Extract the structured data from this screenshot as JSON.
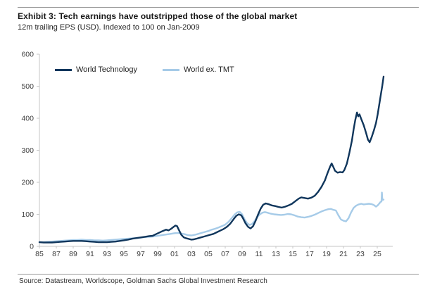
{
  "header": {
    "title": "Exhibit 3: Tech earnings have outstripped those of the global market",
    "subtitle": "12m trailing EPS (USD). Indexed to 100 on Jan-2009"
  },
  "footer": {
    "source": "Source: Datastream, Worldscope, Goldman Sachs Global Investment Research"
  },
  "chart_data": {
    "type": "line",
    "title": "Exhibit 3: Tech earnings have outstripped those of the global market",
    "subtitle": "12m trailing EPS (USD). Indexed to 100 on Jan-2009",
    "xlabel": "",
    "ylabel": "",
    "grid": false,
    "legend_position": "top-left-inside",
    "ylim": [
      0,
      600
    ],
    "yticks": [
      0,
      100,
      200,
      300,
      400,
      500,
      600
    ],
    "xtick_years": [
      1985,
      1987,
      1989,
      1991,
      1993,
      1995,
      1997,
      1999,
      2001,
      2003,
      2005,
      2007,
      2009,
      2011,
      2013,
      2015,
      2017,
      2019,
      2021,
      2023,
      2025
    ],
    "xtick_labels": [
      "85",
      "87",
      "89",
      "91",
      "93",
      "95",
      "97",
      "99",
      "01",
      "03",
      "05",
      "07",
      "09",
      "11",
      "13",
      "15",
      "17",
      "19",
      "21",
      "23",
      "25"
    ],
    "axis_color": "#c6c6c6",
    "tick_label_color": "#3d3d3d",
    "colors": {
      "world_technology": "#10365c",
      "world_ex_tmt": "#a6cbe8"
    },
    "series": [
      {
        "name": "World Technology",
        "color_key": "world_technology",
        "points": [
          [
            1985.0,
            13
          ],
          [
            1985.5,
            12
          ],
          [
            1986.0,
            12
          ],
          [
            1986.5,
            12
          ],
          [
            1987.0,
            13
          ],
          [
            1987.5,
            14
          ],
          [
            1988.0,
            15
          ],
          [
            1988.5,
            16
          ],
          [
            1989.0,
            17
          ],
          [
            1989.5,
            17
          ],
          [
            1990.0,
            17
          ],
          [
            1990.5,
            16
          ],
          [
            1991.0,
            15
          ],
          [
            1991.5,
            14
          ],
          [
            1992.0,
            13
          ],
          [
            1992.5,
            13
          ],
          [
            1993.0,
            13
          ],
          [
            1993.5,
            14
          ],
          [
            1994.0,
            15
          ],
          [
            1994.5,
            17
          ],
          [
            1995.0,
            19
          ],
          [
            1995.5,
            21
          ],
          [
            1996.0,
            24
          ],
          [
            1996.5,
            26
          ],
          [
            1997.0,
            28
          ],
          [
            1997.5,
            30
          ],
          [
            1998.0,
            32
          ],
          [
            1998.4,
            33
          ],
          [
            1998.8,
            38
          ],
          [
            1999.2,
            43
          ],
          [
            1999.6,
            48
          ],
          [
            2000.0,
            52
          ],
          [
            2000.3,
            50
          ],
          [
            2000.6,
            55
          ],
          [
            2000.9,
            61
          ],
          [
            2001.1,
            65
          ],
          [
            2001.3,
            63
          ],
          [
            2001.5,
            52
          ],
          [
            2001.8,
            36
          ],
          [
            2002.1,
            28
          ],
          [
            2002.4,
            25
          ],
          [
            2002.7,
            23
          ],
          [
            2003.0,
            21
          ],
          [
            2003.3,
            22
          ],
          [
            2003.6,
            24
          ],
          [
            2004.0,
            27
          ],
          [
            2004.4,
            30
          ],
          [
            2004.8,
            33
          ],
          [
            2005.2,
            36
          ],
          [
            2005.6,
            39
          ],
          [
            2006.0,
            44
          ],
          [
            2006.4,
            49
          ],
          [
            2006.8,
            54
          ],
          [
            2007.2,
            61
          ],
          [
            2007.6,
            71
          ],
          [
            2008.0,
            85
          ],
          [
            2008.3,
            95
          ],
          [
            2008.6,
            100
          ],
          [
            2008.9,
            97
          ],
          [
            2009.1,
            88
          ],
          [
            2009.4,
            72
          ],
          [
            2009.7,
            61
          ],
          [
            2010.0,
            56
          ],
          [
            2010.3,
            63
          ],
          [
            2010.6,
            80
          ],
          [
            2010.9,
            100
          ],
          [
            2011.2,
            118
          ],
          [
            2011.5,
            130
          ],
          [
            2011.8,
            134
          ],
          [
            2012.1,
            132
          ],
          [
            2012.5,
            128
          ],
          [
            2012.9,
            126
          ],
          [
            2013.3,
            123
          ],
          [
            2013.7,
            121
          ],
          [
            2014.1,
            124
          ],
          [
            2014.5,
            128
          ],
          [
            2014.9,
            133
          ],
          [
            2015.3,
            141
          ],
          [
            2015.7,
            149
          ],
          [
            2016.0,
            153
          ],
          [
            2016.4,
            151
          ],
          [
            2016.8,
            149
          ],
          [
            2017.2,
            152
          ],
          [
            2017.6,
            158
          ],
          [
            2018.0,
            170
          ],
          [
            2018.4,
            186
          ],
          [
            2018.8,
            206
          ],
          [
            2019.1,
            228
          ],
          [
            2019.4,
            248
          ],
          [
            2019.6,
            259
          ],
          [
            2019.8,
            248
          ],
          [
            2020.0,
            236
          ],
          [
            2020.3,
            230
          ],
          [
            2020.6,
            232
          ],
          [
            2020.9,
            231
          ],
          [
            2021.1,
            238
          ],
          [
            2021.4,
            258
          ],
          [
            2021.7,
            292
          ],
          [
            2022.0,
            330
          ],
          [
            2022.2,
            365
          ],
          [
            2022.4,
            395
          ],
          [
            2022.6,
            418
          ],
          [
            2022.75,
            406
          ],
          [
            2022.9,
            412
          ],
          [
            2023.1,
            398
          ],
          [
            2023.4,
            378
          ],
          [
            2023.7,
            352
          ],
          [
            2023.9,
            333
          ],
          [
            2024.1,
            325
          ],
          [
            2024.35,
            342
          ],
          [
            2024.6,
            362
          ],
          [
            2024.85,
            385
          ],
          [
            2025.05,
            412
          ],
          [
            2025.25,
            445
          ],
          [
            2025.45,
            478
          ],
          [
            2025.6,
            502
          ],
          [
            2025.75,
            530
          ]
        ]
      },
      {
        "name": "World ex. TMT",
        "color_key": "world_ex_tmt",
        "points": [
          [
            1985.0,
            13
          ],
          [
            1985.5,
            13
          ],
          [
            1986.0,
            14
          ],
          [
            1986.5,
            15
          ],
          [
            1987.0,
            16
          ],
          [
            1987.5,
            17
          ],
          [
            1988.0,
            18
          ],
          [
            1988.5,
            19
          ],
          [
            1989.0,
            20
          ],
          [
            1989.5,
            20
          ],
          [
            1990.0,
            21
          ],
          [
            1990.5,
            20
          ],
          [
            1991.0,
            20
          ],
          [
            1991.5,
            19
          ],
          [
            1992.0,
            19
          ],
          [
            1992.5,
            18
          ],
          [
            1993.0,
            19
          ],
          [
            1993.5,
            20
          ],
          [
            1994.0,
            21
          ],
          [
            1994.5,
            22
          ],
          [
            1995.0,
            23
          ],
          [
            1995.5,
            24
          ],
          [
            1996.0,
            25
          ],
          [
            1996.5,
            26
          ],
          [
            1997.0,
            27
          ],
          [
            1997.5,
            29
          ],
          [
            1998.0,
            30
          ],
          [
            1998.5,
            31
          ],
          [
            1999.0,
            33
          ],
          [
            1999.5,
            35
          ],
          [
            2000.0,
            37
          ],
          [
            2000.5,
            39
          ],
          [
            2001.0,
            41
          ],
          [
            2001.4,
            42
          ],
          [
            2001.8,
            40
          ],
          [
            2002.2,
            38
          ],
          [
            2002.6,
            35
          ],
          [
            2003.0,
            34
          ],
          [
            2003.4,
            36
          ],
          [
            2003.8,
            39
          ],
          [
            2004.2,
            42
          ],
          [
            2004.6,
            45
          ],
          [
            2005.0,
            48
          ],
          [
            2005.4,
            52
          ],
          [
            2005.8,
            55
          ],
          [
            2006.2,
            59
          ],
          [
            2006.6,
            63
          ],
          [
            2007.0,
            68
          ],
          [
            2007.4,
            77
          ],
          [
            2007.8,
            89
          ],
          [
            2008.1,
            99
          ],
          [
            2008.4,
            106
          ],
          [
            2008.7,
            108
          ],
          [
            2009.0,
            100
          ],
          [
            2009.3,
            84
          ],
          [
            2009.6,
            72
          ],
          [
            2009.9,
            67
          ],
          [
            2010.2,
            70
          ],
          [
            2010.5,
            80
          ],
          [
            2010.8,
            92
          ],
          [
            2011.1,
            100
          ],
          [
            2011.4,
            105
          ],
          [
            2011.7,
            107
          ],
          [
            2012.0,
            105
          ],
          [
            2012.4,
            102
          ],
          [
            2012.8,
            100
          ],
          [
            2013.2,
            99
          ],
          [
            2013.6,
            98
          ],
          [
            2014.0,
            99
          ],
          [
            2014.4,
            101
          ],
          [
            2014.8,
            100
          ],
          [
            2015.2,
            97
          ],
          [
            2015.6,
            93
          ],
          [
            2016.0,
            91
          ],
          [
            2016.4,
            90
          ],
          [
            2016.8,
            92
          ],
          [
            2017.2,
            95
          ],
          [
            2017.6,
            99
          ],
          [
            2018.0,
            104
          ],
          [
            2018.4,
            109
          ],
          [
            2018.8,
            113
          ],
          [
            2019.2,
            116
          ],
          [
            2019.5,
            117
          ],
          [
            2019.8,
            114
          ],
          [
            2020.1,
            112
          ],
          [
            2020.4,
            97
          ],
          [
            2020.7,
            84
          ],
          [
            2021.0,
            80
          ],
          [
            2021.3,
            78
          ],
          [
            2021.6,
            88
          ],
          [
            2021.9,
            106
          ],
          [
            2022.2,
            120
          ],
          [
            2022.5,
            127
          ],
          [
            2022.8,
            131
          ],
          [
            2023.1,
            133
          ],
          [
            2023.4,
            131
          ],
          [
            2023.7,
            132
          ],
          [
            2024.0,
            133
          ],
          [
            2024.3,
            132
          ],
          [
            2024.6,
            129
          ],
          [
            2024.85,
            124
          ],
          [
            2025.05,
            128
          ],
          [
            2025.25,
            134
          ],
          [
            2025.4,
            139
          ],
          [
            2025.5,
            140
          ],
          [
            2025.55,
            168
          ],
          [
            2025.6,
            145
          ],
          [
            2025.75,
            146
          ]
        ]
      }
    ]
  }
}
